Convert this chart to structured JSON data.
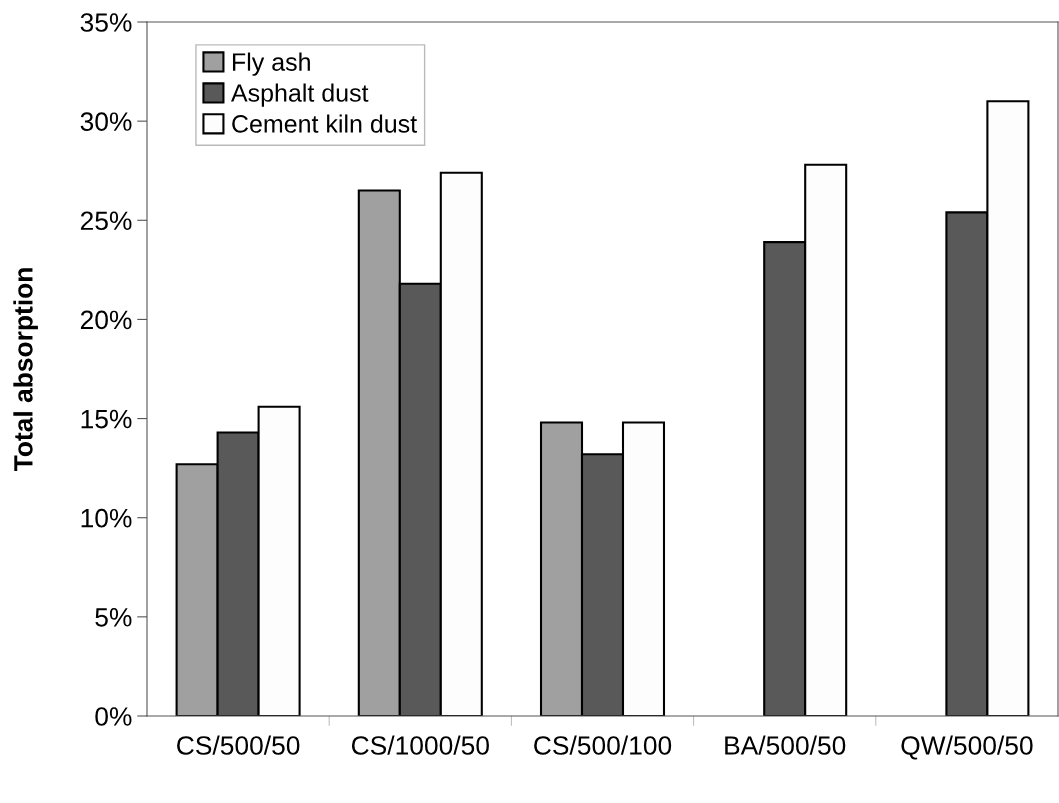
{
  "chart_data": {
    "type": "bar",
    "ylabel": "Total absorption",
    "categories": [
      "CS/500/50",
      "CS/1000/50",
      "CS/500/100",
      "BA/500/50",
      "QW/500/50"
    ],
    "series": [
      {
        "name": "Fly ash",
        "color": "#a0a0a0",
        "values": [
          12.7,
          26.5,
          14.8,
          null,
          null
        ]
      },
      {
        "name": "Asphalt dust",
        "color": "#595959",
        "values": [
          14.3,
          21.8,
          13.2,
          23.9,
          25.4
        ]
      },
      {
        "name": "Cement kiln dust",
        "color": "#fdfdfd",
        "values": [
          15.6,
          27.4,
          14.8,
          27.8,
          31.0
        ]
      }
    ],
    "ylim": [
      0,
      35
    ],
    "yticks": [
      {
        "value": 0,
        "label": "0%"
      },
      {
        "value": 5,
        "label": "5%"
      },
      {
        "value": 10,
        "label": "10%"
      },
      {
        "value": 15,
        "label": "15%"
      },
      {
        "value": 20,
        "label": "20%"
      },
      {
        "value": 25,
        "label": "25%"
      },
      {
        "value": 30,
        "label": "30%"
      },
      {
        "value": 35,
        "label": "35%"
      }
    ],
    "legend": "top left",
    "grid": false
  }
}
